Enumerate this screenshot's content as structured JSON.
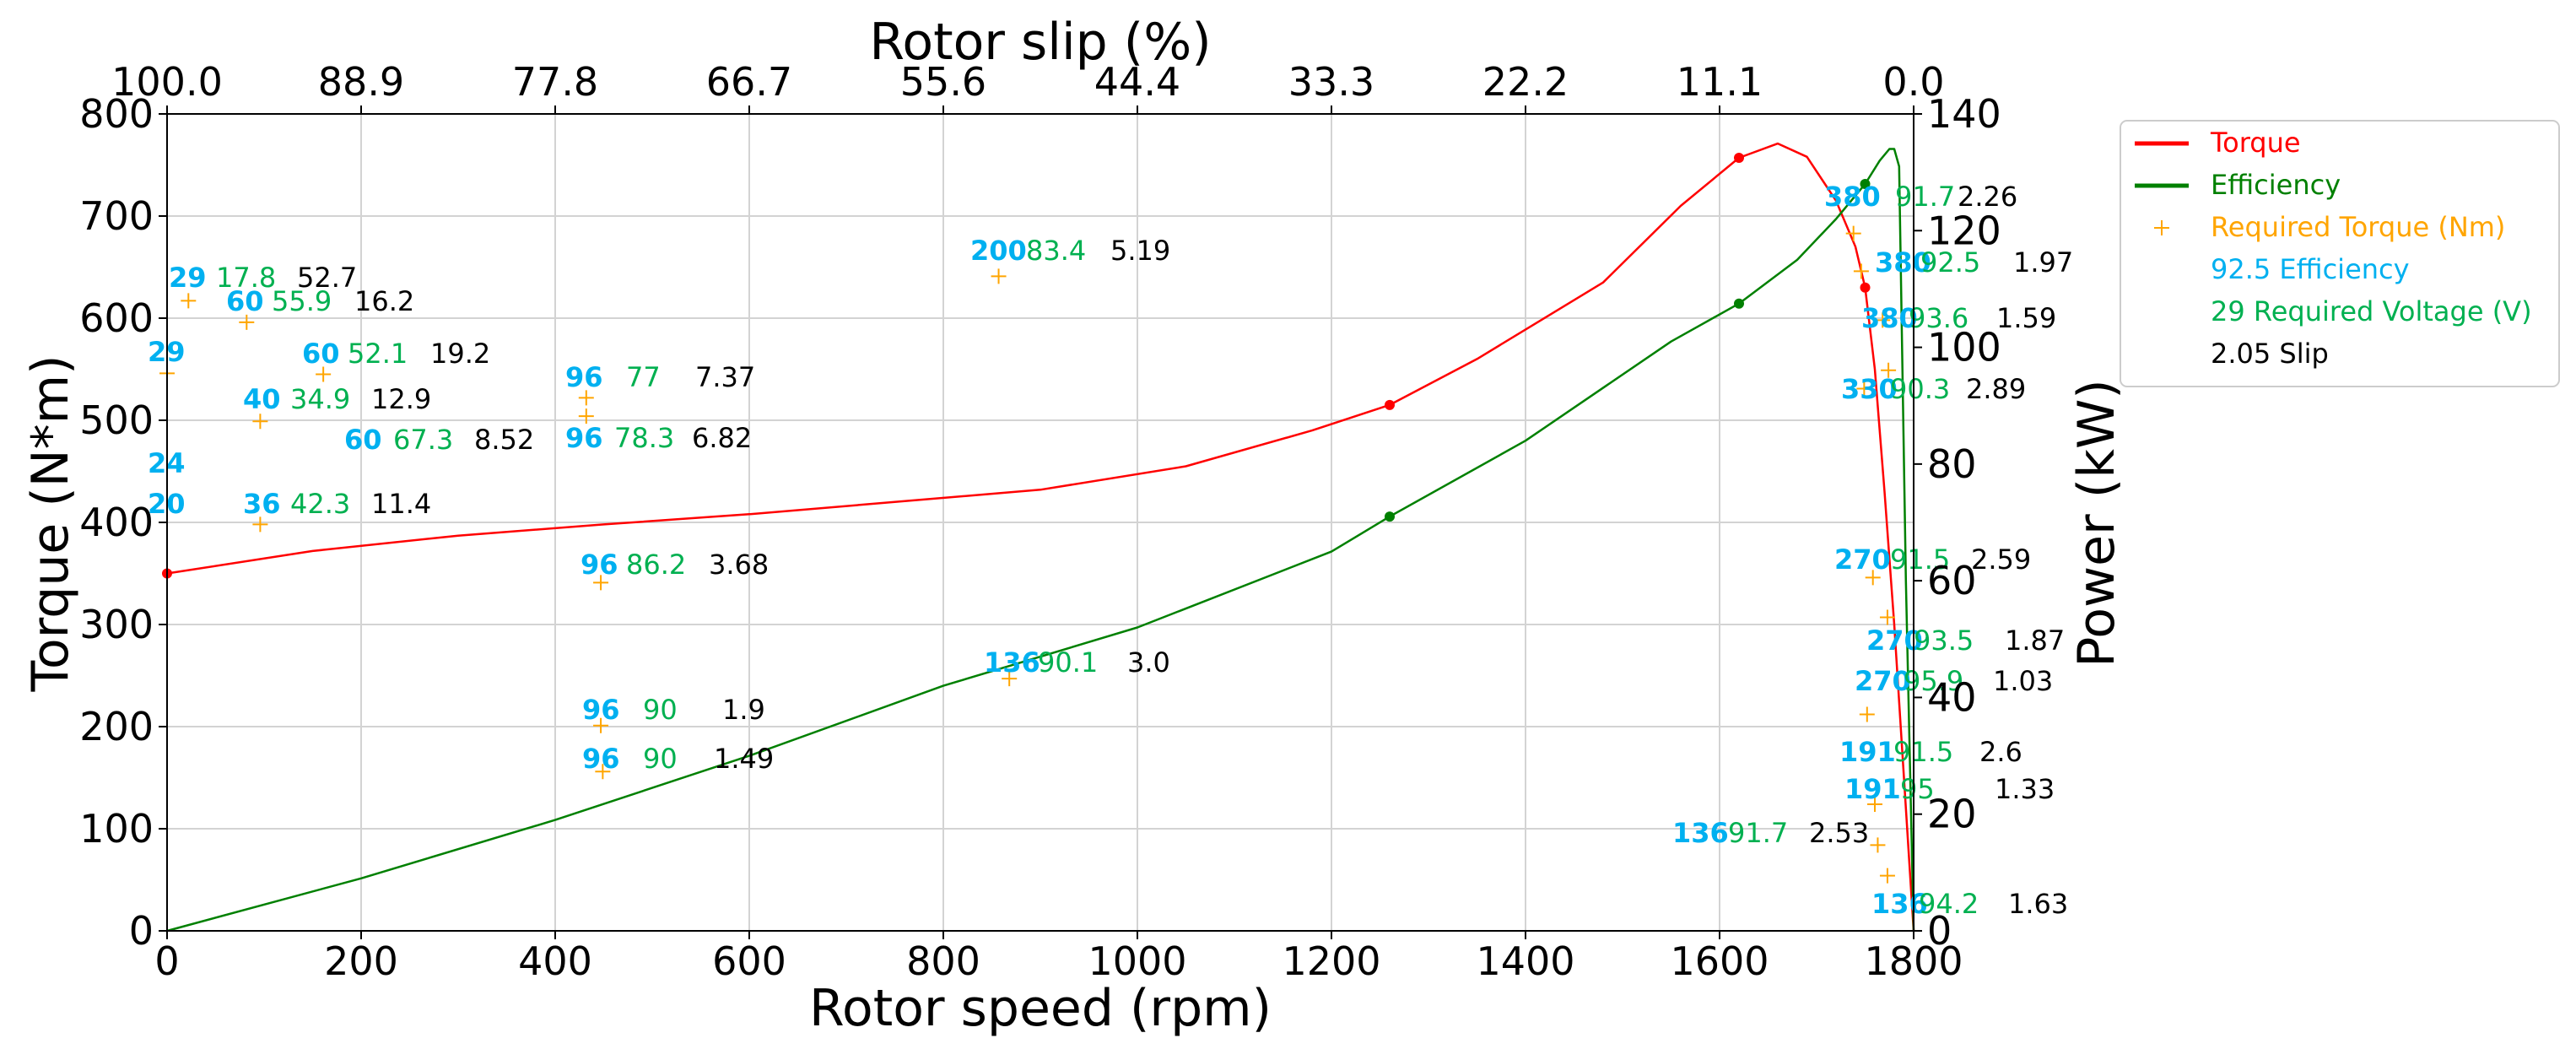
{
  "chart_data": {
    "type": "line",
    "xlabel": "Rotor speed (rpm)",
    "ylabel": "Torque (N*m)",
    "y2label": "Power (kW)",
    "top_xlabel": "Rotor slip (%)",
    "xlim": [
      0,
      1800
    ],
    "ylim": [
      0,
      800
    ],
    "y2lim": [
      0,
      140
    ],
    "xticks": [
      "0",
      "200",
      "400",
      "600",
      "800",
      "1000",
      "1200",
      "1400",
      "1600",
      "1800"
    ],
    "yticks": [
      "0",
      "100",
      "200",
      "300",
      "400",
      "500",
      "600",
      "700",
      "800"
    ],
    "y2ticks": [
      "0",
      "20",
      "40",
      "60",
      "80",
      "100",
      "120",
      "140"
    ],
    "top_ticks": [
      "100.0",
      "88.9",
      "77.8",
      "66.7",
      "55.6",
      "44.4",
      "33.3",
      "22.2",
      "11.1",
      "0.0"
    ],
    "series": [
      {
        "name": "Torque",
        "color": "#ff0000",
        "x": [
          0,
          150,
          300,
          450,
          600,
          750,
          900,
          1050,
          1180,
          1260,
          1350,
          1480,
          1560,
          1620,
          1660,
          1690,
          1720,
          1740,
          1750,
          1760,
          1770,
          1780,
          1790,
          1800
        ],
        "y": [
          350,
          372,
          387,
          398,
          408,
          420,
          432,
          455,
          490,
          515,
          560,
          635,
          710,
          757,
          771,
          758,
          715,
          670,
          630,
          550,
          430,
          300,
          150,
          0
        ],
        "markers_x": [
          0,
          1260,
          1620,
          1750
        ],
        "markers_y": [
          350,
          515,
          757,
          630
        ]
      },
      {
        "name": "Efficiency",
        "color": "#008000",
        "axis": "y2",
        "x": [
          0,
          200,
          400,
          600,
          800,
          1000,
          1200,
          1260,
          1400,
          1550,
          1620,
          1680,
          1720,
          1740,
          1750,
          1765,
          1775,
          1780,
          1785,
          1792,
          1800
        ],
        "y": [
          0,
          9,
          19,
          30,
          42,
          52,
          65,
          71,
          84,
          101,
          107.5,
          115,
          122,
          126,
          128,
          132,
          134,
          134,
          131,
          60,
          0
        ],
        "markers_x": [
          1260,
          1620,
          1750
        ],
        "markers_y": [
          71,
          107.5,
          128
        ]
      }
    ],
    "required_torque": {
      "name": "Required Torque (Nm)",
      "color": "#ffa500",
      "x": [
        22,
        82,
        0,
        161,
        96,
        96,
        432,
        432,
        447,
        447,
        449,
        857,
        868,
        1738,
        1746,
        1768,
        1774,
        1758,
        1773,
        1752,
        1760,
        1763,
        1773,
        1749
      ],
      "y": [
        617,
        596,
        546,
        545,
        499,
        398,
        522,
        504,
        341,
        201,
        156,
        641,
        247,
        683,
        646,
        598,
        549,
        346,
        307,
        212,
        124,
        84,
        54,
        531
      ]
    },
    "annotations": [
      {
        "voltage": "29",
        "efficiency": "17.8",
        "slip": "52.7"
      },
      {
        "voltage": "60",
        "efficiency": "55.9",
        "slip": "16.2"
      },
      {
        "voltage": "29",
        "efficiency": "",
        "slip": ""
      },
      {
        "voltage": "60",
        "efficiency": "52.1",
        "slip": "19.2"
      },
      {
        "voltage": "40",
        "efficiency": "34.9",
        "slip": "12.9"
      },
      {
        "voltage": "60",
        "efficiency": "67.3",
        "slip": "8.52"
      },
      {
        "voltage": "24",
        "efficiency": "",
        "slip": ""
      },
      {
        "voltage": "20",
        "efficiency": "",
        "slip": ""
      },
      {
        "voltage": "36",
        "efficiency": "42.3",
        "slip": "11.4"
      },
      {
        "voltage": "96",
        "efficiency": "77",
        "slip": "7.37"
      },
      {
        "voltage": "96",
        "efficiency": "78.3",
        "slip": "6.82"
      },
      {
        "voltage": "96",
        "efficiency": "86.2",
        "slip": "3.68"
      },
      {
        "voltage": "96",
        "efficiency": "90",
        "slip": "1.9"
      },
      {
        "voltage": "96",
        "efficiency": "90",
        "slip": "1.49"
      },
      {
        "voltage": "200",
        "efficiency": "83.4",
        "slip": "5.19"
      },
      {
        "voltage": "136",
        "efficiency": "90.1",
        "slip": "3.0"
      },
      {
        "voltage": "380",
        "efficiency": "91.7",
        "slip": "2.26"
      },
      {
        "voltage": "380",
        "efficiency": "92.5",
        "slip": "1.97"
      },
      {
        "voltage": "380",
        "efficiency": "93.6",
        "slip": "1.59"
      },
      {
        "voltage": "330",
        "efficiency": "90.3",
        "slip": "2.89"
      },
      {
        "voltage": "270",
        "efficiency": "91.5",
        "slip": "2.59"
      },
      {
        "voltage": "270",
        "efficiency": "93.5",
        "slip": "1.87"
      },
      {
        "voltage": "270",
        "efficiency": "95.9",
        "slip": "1.03"
      },
      {
        "voltage": "191",
        "efficiency": "91.5",
        "slip": "2.6"
      },
      {
        "voltage": "191",
        "efficiency": "95",
        "slip": "1.33"
      },
      {
        "voltage": "136",
        "efficiency": "91.7",
        "slip": "2.53"
      },
      {
        "voltage": "136",
        "efficiency": "94.2",
        "slip": "1.63"
      }
    ],
    "legend": {
      "position": "outside-right",
      "entries": [
        {
          "label": "Torque",
          "color": "#ff0000",
          "kind": "line"
        },
        {
          "label": "Efficiency",
          "color": "#008000",
          "kind": "line"
        },
        {
          "label": "Required Torque (Nm)",
          "color": "#ffa500",
          "kind": "marker"
        },
        {
          "label": "92.5 Efficiency",
          "color": "#00b0f0",
          "kind": "text"
        },
        {
          "label": "29 Required Voltage (V)",
          "color": "#00b050",
          "kind": "text"
        },
        {
          "label": "2.05 Slip",
          "color": "#000000",
          "kind": "text"
        }
      ]
    },
    "grid": true
  }
}
